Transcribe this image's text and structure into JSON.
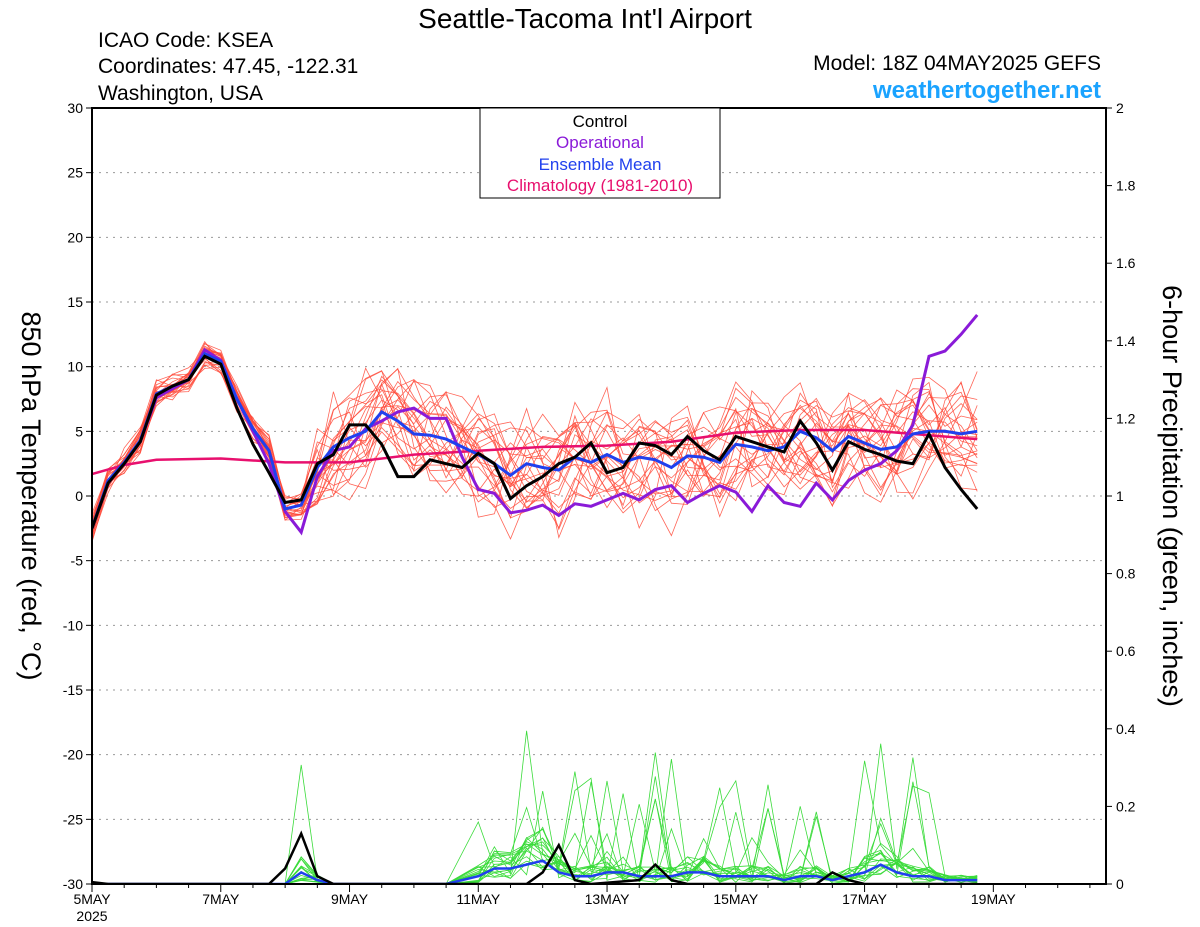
{
  "header": {
    "title": "Seattle-Tacoma Int'l Airport",
    "icao": "ICAO Code: KSEA",
    "coords": "Coordinates: 47.45, -122.31",
    "region": "Washington, USA",
    "model": "Model: 18Z 04MAY2025 GEFS",
    "website": "weathertogether.net"
  },
  "colors": {
    "control": "#000000",
    "operational": "#8a1ad8",
    "ensemble_mean": "#2040ee",
    "climatology": "#e8106e",
    "members_temp": "#ff4a3a",
    "members_precip": "#3adb3a",
    "website": "#1aa3ff"
  },
  "chart_data": {
    "type": "line",
    "title": "Seattle-Tacoma Int'l Airport",
    "ylabel": "850 hPa Temperature (red, °C)",
    "y2label": "6-hour Precipitation (green, inches)",
    "ylim": [
      -30,
      30
    ],
    "y2lim": [
      0,
      2
    ],
    "grid": true,
    "legend_position": "top-center",
    "x_axis": {
      "units": "hours from 00Z 5 May 2025",
      "range": [
        0,
        378
      ],
      "tick_values": [
        0,
        48,
        96,
        144,
        192,
        240,
        288,
        336
      ],
      "tick_labels": [
        "5MAY",
        "7MAY",
        "9MAY",
        "11MAY",
        "13MAY",
        "15MAY",
        "17MAY",
        "19MAY"
      ],
      "sub_label": "2025"
    },
    "y_ticks": [
      -30,
      -25,
      -20,
      -15,
      -10,
      -5,
      0,
      5,
      10,
      15,
      20,
      25,
      30
    ],
    "y2_ticks": [
      0,
      0.2,
      0.4,
      0.6,
      0.8,
      1,
      1.2,
      1.4,
      1.6,
      1.8,
      2
    ],
    "legend": [
      "Control",
      "Operational",
      "Ensemble Mean",
      "Climatology (1981-2010)"
    ],
    "series": [
      {
        "name": "Control",
        "axis": "left",
        "points": [
          [
            0,
            -2.5
          ],
          [
            6,
            1
          ],
          [
            12,
            2.5
          ],
          [
            18,
            4.2
          ],
          [
            24,
            7.8
          ],
          [
            30,
            8.5
          ],
          [
            36,
            9
          ],
          [
            42,
            10.8
          ],
          [
            48,
            10.2
          ],
          [
            54,
            6.8
          ],
          [
            60,
            4
          ],
          [
            66,
            1.8
          ],
          [
            72,
            -0.5
          ],
          [
            78,
            -0.3
          ],
          [
            84,
            2.5
          ],
          [
            90,
            3.2
          ],
          [
            96,
            5.5
          ],
          [
            102,
            5.5
          ],
          [
            108,
            4
          ],
          [
            114,
            1.5
          ],
          [
            120,
            1.5
          ],
          [
            126,
            2.8
          ],
          [
            132,
            2.5
          ],
          [
            138,
            2.2
          ],
          [
            144,
            3.3
          ],
          [
            150,
            2.5
          ],
          [
            156,
            -0.2
          ],
          [
            162,
            0.8
          ],
          [
            168,
            1.5
          ],
          [
            174,
            2.5
          ],
          [
            180,
            3
          ],
          [
            186,
            4.1
          ],
          [
            192,
            1.8
          ],
          [
            198,
            2.2
          ],
          [
            204,
            4.1
          ],
          [
            210,
            3.9
          ],
          [
            216,
            3.2
          ],
          [
            222,
            4.6
          ],
          [
            228,
            3.5
          ],
          [
            234,
            2.8
          ],
          [
            240,
            4.6
          ],
          [
            246,
            4.2
          ],
          [
            252,
            3.8
          ],
          [
            258,
            3.4
          ],
          [
            264,
            5.8
          ],
          [
            270,
            4.1
          ],
          [
            276,
            2
          ],
          [
            282,
            4.2
          ],
          [
            288,
            3.6
          ],
          [
            294,
            3.2
          ],
          [
            300,
            2.7
          ],
          [
            306,
            2.5
          ],
          [
            312,
            4.8
          ],
          [
            318,
            2.2
          ],
          [
            324,
            0.5
          ],
          [
            330,
            -1
          ]
        ]
      },
      {
        "name": "Operational",
        "axis": "left",
        "points": [
          [
            0,
            -2.5
          ],
          [
            6,
            1
          ],
          [
            12,
            2.5
          ],
          [
            18,
            4.2
          ],
          [
            24,
            7.6
          ],
          [
            30,
            8.3
          ],
          [
            36,
            9
          ],
          [
            42,
            11.3
          ],
          [
            48,
            10.5
          ],
          [
            54,
            7.5
          ],
          [
            60,
            5
          ],
          [
            66,
            2.5
          ],
          [
            72,
            -1.2
          ],
          [
            78,
            -2.8
          ],
          [
            84,
            1.5
          ],
          [
            90,
            3.5
          ],
          [
            96,
            3.8
          ],
          [
            102,
            5.2
          ],
          [
            108,
            5.8
          ],
          [
            114,
            6.5
          ],
          [
            120,
            6.8
          ],
          [
            126,
            6
          ],
          [
            132,
            6
          ],
          [
            138,
            3
          ],
          [
            144,
            0.5
          ],
          [
            150,
            0.2
          ],
          [
            156,
            -1.3
          ],
          [
            162,
            -1.1
          ],
          [
            168,
            -0.7
          ],
          [
            174,
            -1.5
          ],
          [
            180,
            -0.6
          ],
          [
            186,
            -0.8
          ],
          [
            192,
            -0.3
          ],
          [
            198,
            0.2
          ],
          [
            204,
            -0.3
          ],
          [
            210,
            0.5
          ],
          [
            216,
            0.8
          ],
          [
            222,
            -0.5
          ],
          [
            228,
            0.2
          ],
          [
            234,
            0.8
          ],
          [
            240,
            0.3
          ],
          [
            246,
            -1.2
          ],
          [
            252,
            0.8
          ],
          [
            258,
            -0.5
          ],
          [
            264,
            -0.8
          ],
          [
            270,
            1
          ],
          [
            276,
            -0.3
          ],
          [
            282,
            1.2
          ],
          [
            288,
            2
          ],
          [
            294,
            2.5
          ],
          [
            300,
            3.5
          ],
          [
            306,
            5.5
          ],
          [
            312,
            10.8
          ],
          [
            318,
            11.2
          ],
          [
            324,
            12.5
          ],
          [
            330,
            14
          ]
        ]
      },
      {
        "name": "Ensemble Mean",
        "axis": "left",
        "points": [
          [
            0,
            -2.5
          ],
          [
            6,
            1.2
          ],
          [
            12,
            2.6
          ],
          [
            18,
            4.3
          ],
          [
            24,
            7.9
          ],
          [
            30,
            8.5
          ],
          [
            36,
            9
          ],
          [
            42,
            11
          ],
          [
            48,
            10.4
          ],
          [
            54,
            7.5
          ],
          [
            60,
            5.2
          ],
          [
            66,
            3.5
          ],
          [
            72,
            -1
          ],
          [
            78,
            -0.7
          ],
          [
            84,
            2.2
          ],
          [
            90,
            3.8
          ],
          [
            96,
            4.5
          ],
          [
            102,
            5
          ],
          [
            108,
            6.5
          ],
          [
            114,
            5.8
          ],
          [
            120,
            4.8
          ],
          [
            126,
            4.7
          ],
          [
            132,
            4.4
          ],
          [
            138,
            3.8
          ],
          [
            144,
            3.2
          ],
          [
            150,
            2.5
          ],
          [
            156,
            1.6
          ],
          [
            162,
            2.5
          ],
          [
            168,
            2.2
          ],
          [
            174,
            2
          ],
          [
            180,
            3
          ],
          [
            186,
            2.6
          ],
          [
            192,
            3.2
          ],
          [
            198,
            2.6
          ],
          [
            204,
            3
          ],
          [
            210,
            2.8
          ],
          [
            216,
            2.2
          ],
          [
            222,
            3.1
          ],
          [
            228,
            3
          ],
          [
            234,
            2.6
          ],
          [
            240,
            4
          ],
          [
            246,
            3.8
          ],
          [
            252,
            3.5
          ],
          [
            258,
            3.8
          ],
          [
            264,
            5
          ],
          [
            270,
            4.5
          ],
          [
            276,
            3.5
          ],
          [
            282,
            4.6
          ],
          [
            288,
            4.1
          ],
          [
            294,
            3.6
          ],
          [
            300,
            3.8
          ],
          [
            306,
            4.8
          ],
          [
            312,
            5
          ],
          [
            318,
            5
          ],
          [
            324,
            4.8
          ],
          [
            330,
            5
          ]
        ]
      },
      {
        "name": "Climatology (1981-2010)",
        "axis": "left",
        "points": [
          [
            0,
            1.7
          ],
          [
            12,
            2.4
          ],
          [
            24,
            2.8
          ],
          [
            48,
            2.9
          ],
          [
            72,
            2.6
          ],
          [
            96,
            2.6
          ],
          [
            120,
            3.2
          ],
          [
            144,
            3.5
          ],
          [
            168,
            3.8
          ],
          [
            192,
            3.9
          ],
          [
            216,
            4.2
          ],
          [
            240,
            4.9
          ],
          [
            264,
            5.1
          ],
          [
            288,
            5.1
          ],
          [
            312,
            4.7
          ],
          [
            330,
            4.4
          ]
        ]
      }
    ],
    "precip_series": [
      {
        "name": "Control",
        "axis": "right",
        "points": [
          [
            0,
            0.005
          ],
          [
            6,
            0
          ],
          [
            66,
            0
          ],
          [
            72,
            0.04
          ],
          [
            78,
            0.13
          ],
          [
            84,
            0.02
          ],
          [
            90,
            0
          ],
          [
            162,
            0
          ],
          [
            168,
            0.03
          ],
          [
            174,
            0.1
          ],
          [
            180,
            0.01
          ],
          [
            186,
            0
          ],
          [
            204,
            0.01
          ],
          [
            210,
            0.05
          ],
          [
            216,
            0.01
          ],
          [
            222,
            0
          ],
          [
            270,
            0
          ],
          [
            276,
            0.03
          ],
          [
            282,
            0.01
          ],
          [
            288,
            0
          ],
          [
            330,
            0
          ]
        ]
      },
      {
        "name": "Ensemble Mean",
        "axis": "right",
        "points": [
          [
            0,
            0
          ],
          [
            72,
            0
          ],
          [
            78,
            0.03
          ],
          [
            84,
            0.01
          ],
          [
            90,
            0
          ],
          [
            132,
            0
          ],
          [
            144,
            0.02
          ],
          [
            150,
            0.04
          ],
          [
            156,
            0.04
          ],
          [
            162,
            0.05
          ],
          [
            168,
            0.06
          ],
          [
            174,
            0.03
          ],
          [
            180,
            0.02
          ],
          [
            186,
            0.02
          ],
          [
            192,
            0.03
          ],
          [
            198,
            0.03
          ],
          [
            204,
            0.02
          ],
          [
            210,
            0.02
          ],
          [
            216,
            0.02
          ],
          [
            222,
            0.03
          ],
          [
            228,
            0.03
          ],
          [
            234,
            0.02
          ],
          [
            240,
            0.02
          ],
          [
            246,
            0.02
          ],
          [
            252,
            0.02
          ],
          [
            258,
            0.01
          ],
          [
            264,
            0.02
          ],
          [
            270,
            0.02
          ],
          [
            276,
            0.01
          ],
          [
            282,
            0.02
          ],
          [
            288,
            0.03
          ],
          [
            294,
            0.05
          ],
          [
            300,
            0.03
          ],
          [
            306,
            0.02
          ],
          [
            312,
            0.02
          ],
          [
            318,
            0.01
          ],
          [
            324,
            0.01
          ],
          [
            330,
            0.01
          ]
        ]
      }
    ]
  }
}
